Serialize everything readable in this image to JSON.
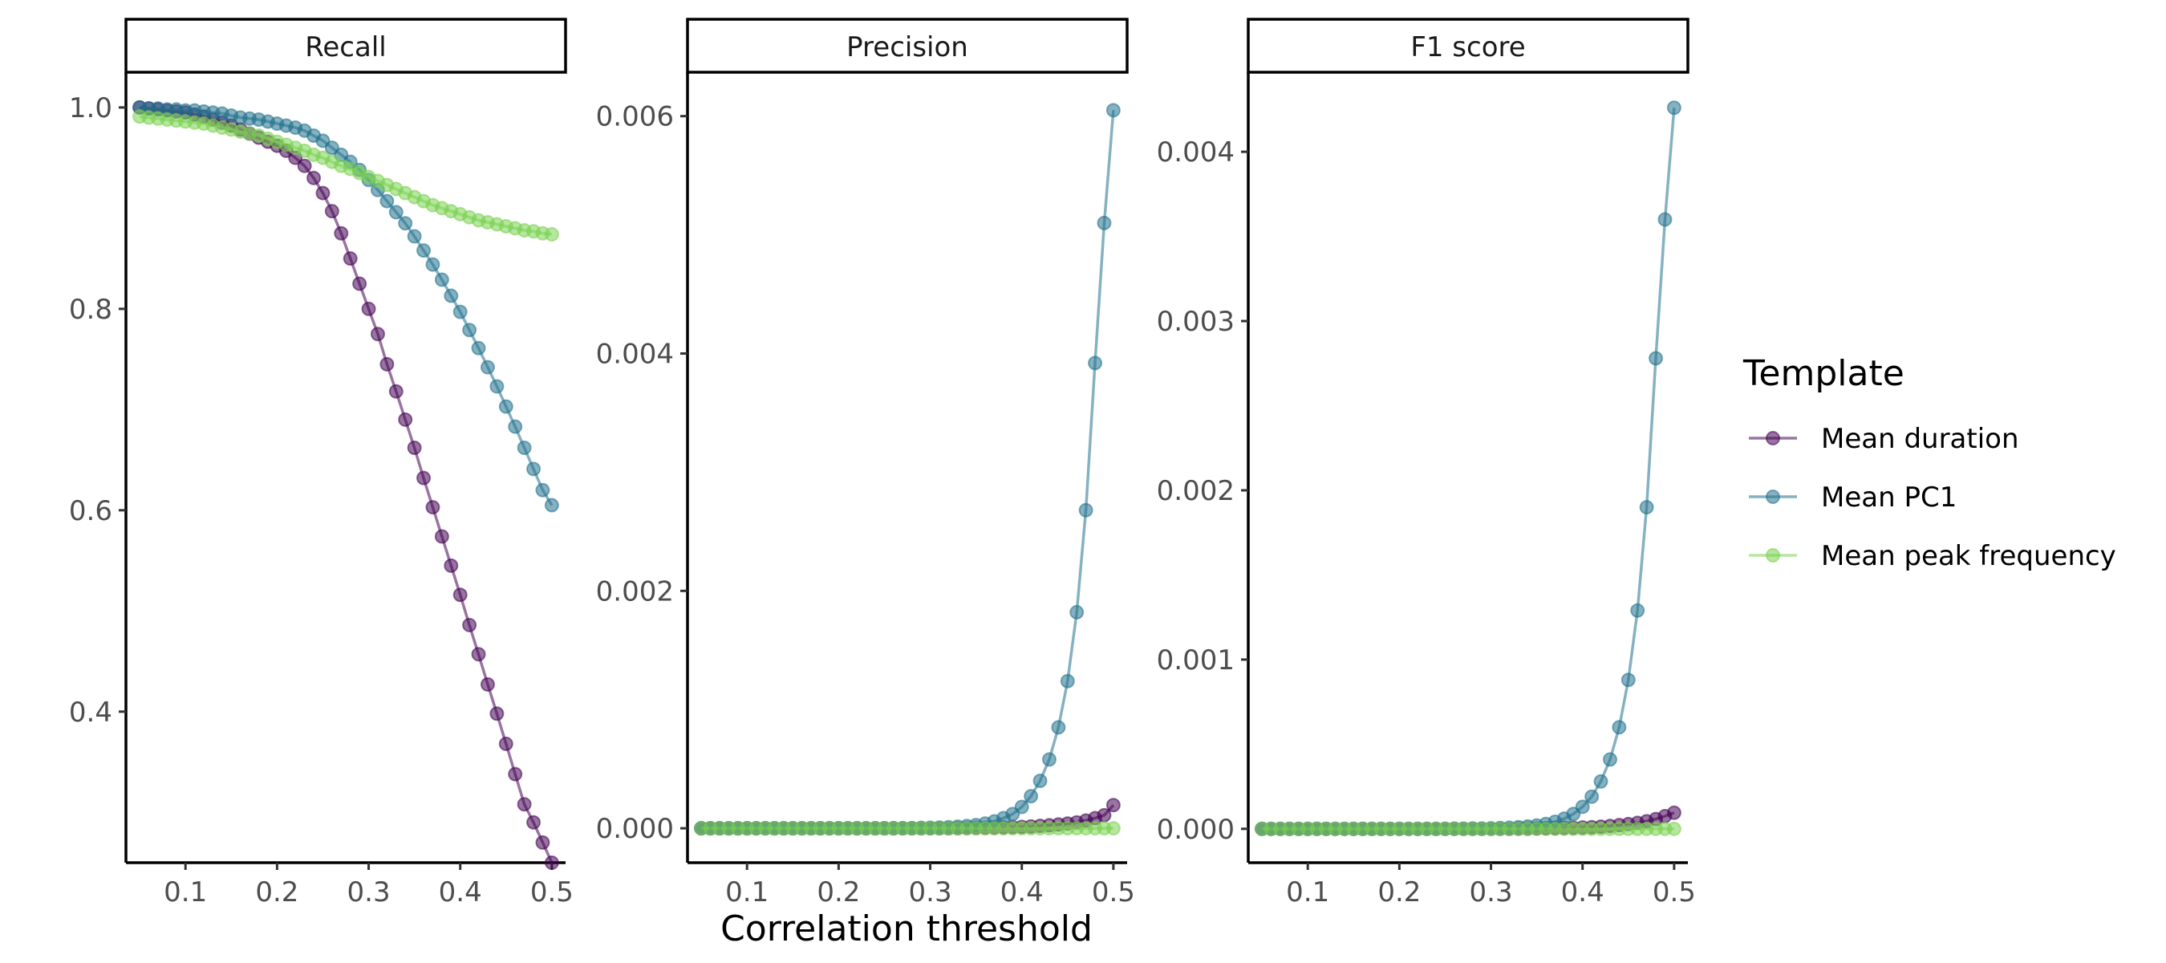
{
  "chart_data": {
    "type": "line",
    "xlabel": "Correlation threshold",
    "legend": {
      "title": "Template",
      "position": "right"
    },
    "x": [
      0.05,
      0.06,
      0.07,
      0.08,
      0.09,
      0.1,
      0.11,
      0.12,
      0.13,
      0.14,
      0.15,
      0.16,
      0.17,
      0.18,
      0.19,
      0.2,
      0.21,
      0.22,
      0.23,
      0.24,
      0.25,
      0.26,
      0.27,
      0.28,
      0.29,
      0.3,
      0.31,
      0.32,
      0.33,
      0.34,
      0.35,
      0.36,
      0.37,
      0.38,
      0.39,
      0.4,
      0.41,
      0.42,
      0.43,
      0.44,
      0.45,
      0.46,
      0.47,
      0.48,
      0.49,
      0.5
    ],
    "series_meta": [
      {
        "name": "Mean duration",
        "color": "#440154"
      },
      {
        "name": "Mean PC1",
        "color": "#21718D"
      },
      {
        "name": "Mean peak frequency",
        "color": "#7AD151"
      }
    ],
    "facets": [
      {
        "title": "Recall",
        "xlim": [
          0.035,
          0.515
        ],
        "ylim": [
          0.25,
          1.035
        ],
        "xticks": [
          0.1,
          0.2,
          0.3,
          0.4,
          0.5
        ],
        "xtick_labels": [
          "0.1",
          "0.2",
          "0.3",
          "0.4",
          "0.5"
        ],
        "yticks": [
          0.4,
          0.6,
          0.8,
          1.0
        ],
        "ytick_labels": [
          "0.4",
          "0.6",
          "0.8",
          "1.0"
        ],
        "series": [
          {
            "name": "Mean duration",
            "values": [
              1.0,
              0.999,
              0.998,
              0.997,
              0.996,
              0.995,
              0.993,
              0.991,
              0.988,
              0.985,
              0.982,
              0.978,
              0.974,
              0.97,
              0.966,
              0.962,
              0.957,
              0.95,
              0.942,
              0.93,
              0.915,
              0.897,
              0.875,
              0.85,
              0.825,
              0.8,
              0.775,
              0.745,
              0.718,
              0.69,
              0.662,
              0.632,
              0.603,
              0.574,
              0.545,
              0.516,
              0.486,
              0.457,
              0.427,
              0.398,
              0.368,
              0.338,
              0.308,
              0.29,
              0.27,
              0.25
            ]
          },
          {
            "name": "Mean PC1",
            "values": [
              1.0,
              0.999,
              0.999,
              0.998,
              0.998,
              0.997,
              0.997,
              0.996,
              0.995,
              0.994,
              0.992,
              0.99,
              0.989,
              0.988,
              0.986,
              0.984,
              0.982,
              0.98,
              0.977,
              0.972,
              0.967,
              0.96,
              0.953,
              0.946,
              0.938,
              0.928,
              0.918,
              0.907,
              0.896,
              0.885,
              0.872,
              0.858,
              0.844,
              0.829,
              0.813,
              0.797,
              0.779,
              0.761,
              0.742,
              0.723,
              0.703,
              0.683,
              0.662,
              0.641,
              0.62,
              0.605
            ]
          },
          {
            "name": "Mean peak frequency",
            "values": [
              0.991,
              0.99,
              0.989,
              0.988,
              0.987,
              0.986,
              0.985,
              0.984,
              0.982,
              0.98,
              0.978,
              0.976,
              0.974,
              0.972,
              0.969,
              0.966,
              0.963,
              0.96,
              0.957,
              0.953,
              0.95,
              0.946,
              0.942,
              0.939,
              0.935,
              0.931,
              0.927,
              0.923,
              0.919,
              0.915,
              0.911,
              0.907,
              0.903,
              0.9,
              0.897,
              0.894,
              0.891,
              0.888,
              0.886,
              0.884,
              0.882,
              0.88,
              0.878,
              0.877,
              0.875,
              0.874
            ]
          }
        ]
      },
      {
        "title": "Precision",
        "xlim": [
          0.035,
          0.515
        ],
        "ylim": [
          -0.00029,
          0.00637
        ],
        "xticks": [
          0.1,
          0.2,
          0.3,
          0.4,
          0.5
        ],
        "xtick_labels": [
          "0.1",
          "0.2",
          "0.3",
          "0.4",
          "0.5"
        ],
        "yticks": [
          0.0,
          0.002,
          0.004,
          0.006
        ],
        "ytick_labels": [
          "0.000",
          "0.002",
          "0.004",
          "0.006"
        ],
        "series": [
          {
            "name": "Mean duration",
            "values": [
              0.0,
              0.0,
              0.0,
              0.0,
              0.0,
              0.0,
              0.0,
              0.0,
              0.0,
              0.0,
              0.0,
              0.0,
              0.0,
              0.0,
              0.0,
              0.0,
              0.0,
              0.0,
              0.0,
              0.0,
              0.0,
              0.0,
              0.0,
              0.0,
              0.0,
              0.0,
              0.0,
              0.0,
              1e-06,
              2e-06,
              3e-06,
              4e-06,
              5e-06,
              7e-06,
              9e-06,
              1.2e-05,
              1.5e-05,
              2e-05,
              2.5e-05,
              3.2e-05,
              4e-05,
              5e-05,
              6.5e-05,
              8.5e-05,
              0.00011,
              0.000195
            ]
          },
          {
            "name": "Mean PC1",
            "values": [
              0.0,
              0.0,
              0.0,
              0.0,
              0.0,
              0.0,
              0.0,
              0.0,
              0.0,
              0.0,
              0.0,
              0.0,
              0.0,
              0.0,
              0.0,
              0.0,
              0.0,
              0.0,
              0.0,
              0.0,
              0.0,
              1e-06,
              1e-06,
              2e-06,
              3e-06,
              4e-06,
              6e-06,
              9e-06,
              1.3e-05,
              1.9e-05,
              2.7e-05,
              4e-05,
              5.8e-05,
              8.5e-05,
              0.00012,
              0.00018,
              0.00027,
              0.0004,
              0.00058,
              0.00085,
              0.00124,
              0.00182,
              0.00268,
              0.00392,
              0.0051,
              0.00605
            ]
          },
          {
            "name": "Mean peak frequency",
            "values": [
              0.0,
              0.0,
              0.0,
              0.0,
              0.0,
              0.0,
              0.0,
              0.0,
              0.0,
              0.0,
              0.0,
              0.0,
              0.0,
              0.0,
              0.0,
              0.0,
              0.0,
              0.0,
              0.0,
              0.0,
              0.0,
              0.0,
              0.0,
              0.0,
              0.0,
              0.0,
              0.0,
              0.0,
              0.0,
              0.0,
              0.0,
              0.0,
              0.0,
              0.0,
              0.0,
              0.0,
              0.0,
              0.0,
              0.0,
              0.0,
              0.0,
              0.0,
              0.0,
              0.0,
              0.0,
              0.0
            ]
          }
        ]
      },
      {
        "title": "F1 score",
        "xlim": [
          0.035,
          0.515
        ],
        "ylim": [
          -0.0002,
          0.00447
        ],
        "xticks": [
          0.1,
          0.2,
          0.3,
          0.4,
          0.5
        ],
        "xtick_labels": [
          "0.1",
          "0.2",
          "0.3",
          "0.4",
          "0.5"
        ],
        "yticks": [
          0.0,
          0.001,
          0.002,
          0.003,
          0.004
        ],
        "ytick_labels": [
          "0.000",
          "0.001",
          "0.002",
          "0.003",
          "0.004"
        ],
        "series": [
          {
            "name": "Mean duration",
            "values": [
              0.0,
              0.0,
              0.0,
              0.0,
              0.0,
              0.0,
              0.0,
              0.0,
              0.0,
              0.0,
              0.0,
              0.0,
              0.0,
              0.0,
              0.0,
              0.0,
              0.0,
              0.0,
              0.0,
              0.0,
              0.0,
              0.0,
              0.0,
              0.0,
              0.0,
              0.0,
              0.0,
              0.0,
              1e-06,
              1e-06,
              2e-06,
              3e-06,
              4e-06,
              5e-06,
              6e-06,
              8e-06,
              1e-05,
              1.3e-05,
              1.7e-05,
              2.2e-05,
              2.8e-05,
              3.5e-05,
              4.5e-05,
              5.8e-05,
              7.5e-05,
              9.5e-05
            ]
          },
          {
            "name": "Mean PC1",
            "values": [
              0.0,
              0.0,
              0.0,
              0.0,
              0.0,
              0.0,
              0.0,
              0.0,
              0.0,
              0.0,
              0.0,
              0.0,
              0.0,
              0.0,
              0.0,
              0.0,
              0.0,
              0.0,
              0.0,
              0.0,
              0.0,
              1e-06,
              1e-06,
              2e-06,
              2e-06,
              3e-06,
              5e-06,
              7e-06,
              1e-05,
              1.4e-05,
              2e-05,
              2.9e-05,
              4.2e-05,
              6e-05,
              8.8e-05,
              0.00013,
              0.00019,
              0.00028,
              0.00041,
              0.0006,
              0.00088,
              0.00129,
              0.0019,
              0.00278,
              0.0036,
              0.00426
            ]
          },
          {
            "name": "Mean peak frequency",
            "values": [
              0.0,
              0.0,
              0.0,
              0.0,
              0.0,
              0.0,
              0.0,
              0.0,
              0.0,
              0.0,
              0.0,
              0.0,
              0.0,
              0.0,
              0.0,
              0.0,
              0.0,
              0.0,
              0.0,
              0.0,
              0.0,
              0.0,
              0.0,
              0.0,
              0.0,
              0.0,
              0.0,
              0.0,
              0.0,
              0.0,
              0.0,
              0.0,
              0.0,
              0.0,
              0.0,
              0.0,
              0.0,
              0.0,
              0.0,
              0.0,
              0.0,
              0.0,
              0.0,
              0.0,
              0.0,
              0.0
            ]
          }
        ]
      }
    ]
  }
}
